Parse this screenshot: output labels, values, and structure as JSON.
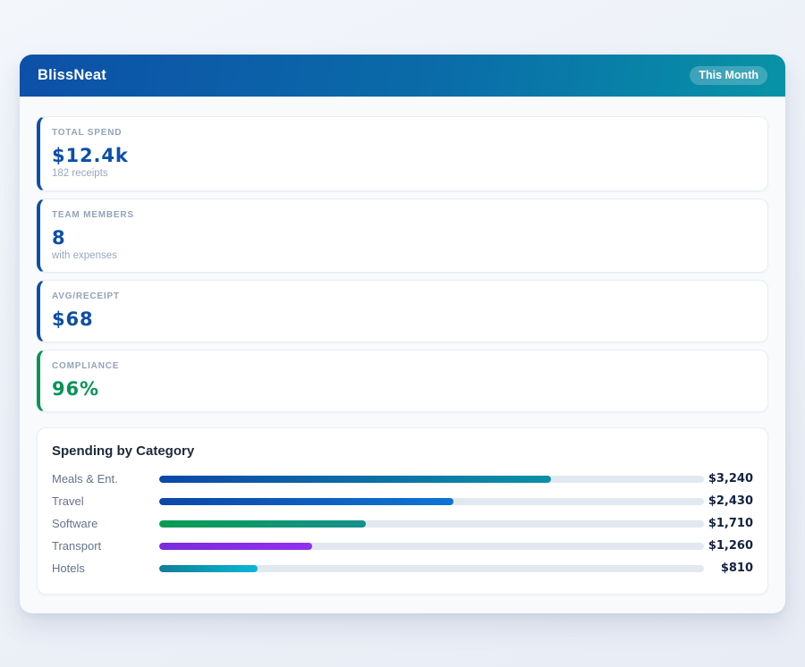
{
  "app": {
    "title": "BlissNeat",
    "period_badge": "This Month",
    "header_gradient": [
      "#0d50a8",
      "#0893a7"
    ]
  },
  "stats": [
    {
      "id": "total-spend",
      "label": "TOTAL SPEND",
      "value": "$12.4k",
      "sub": "182 receipts",
      "accent": "#0d4fa9"
    },
    {
      "id": "team-members",
      "label": "TEAM MEMBERS",
      "value": "8",
      "sub": "with expenses",
      "accent": "#0d4fa9"
    },
    {
      "id": "avg-receipt",
      "label": "AVG/RECEIPT",
      "value": "$68",
      "sub": "",
      "accent": "#0d4fa9"
    },
    {
      "id": "compliance",
      "label": "COMPLIANCE",
      "value": "96%",
      "sub": "",
      "accent": "#089456"
    }
  ],
  "chart_data": {
    "type": "bar",
    "orientation": "horizontal",
    "title": "Spending by Category",
    "categories": [
      "Meals & Ent.",
      "Travel",
      "Software",
      "Transport",
      "Hotels"
    ],
    "values": [
      3240,
      2430,
      1710,
      1260,
      810
    ],
    "value_labels": [
      "$3,240",
      "$2,430",
      "$1,710",
      "$1,260",
      "$810"
    ],
    "scale_max": 4500,
    "track_color": "#e2e8f0",
    "bar_gradients": [
      [
        "#0c47a8",
        "#0b91a5"
      ],
      [
        "#0c47a8",
        "#0e74d6"
      ],
      [
        "#089c52",
        "#16908c"
      ],
      [
        "#7c2bdb",
        "#9230ee"
      ],
      [
        "#107f98",
        "#0bb7d8"
      ]
    ]
  }
}
